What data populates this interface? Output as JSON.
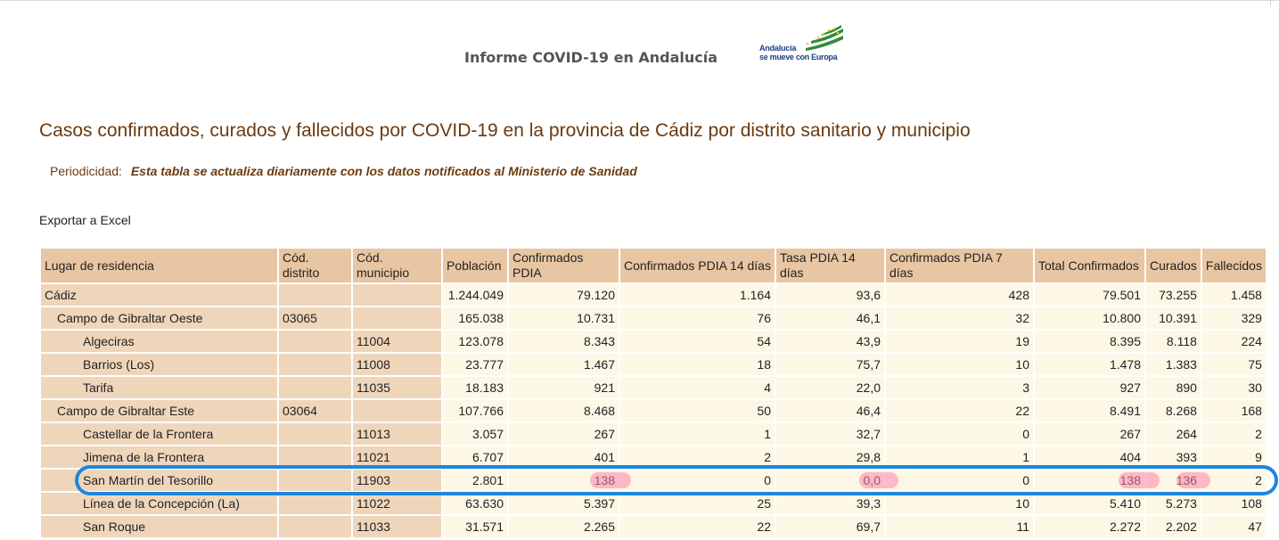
{
  "header": {
    "title": "Informe COVID-19 en Andalucía",
    "logo_line1": "Andalucía",
    "logo_line2": "se mueve con Europa"
  },
  "page_title": "Casos confirmados, curados y fallecidos por COVID-19 en la provincia de Cádiz por distrito sanitario y municipio",
  "periodicidad": {
    "label": "Periodicidad:",
    "value": "Esta tabla se actualiza diariamente con los datos notificados al Ministerio de Sanidad"
  },
  "export_label": "Exportar a Excel",
  "table": {
    "columns": [
      "Lugar de residencia",
      "Cód. distrito",
      "Cód. municipio",
      "Población",
      "Confirmados PDIA",
      "Confirmados PDIA 14 días",
      "Tasa PDIA 14 días",
      "Confirmados PDIA 7 días",
      "Total Confirmados",
      "Curados",
      "Fallecidos"
    ],
    "rows": [
      [
        "Cádiz",
        "",
        "",
        "1.244.049",
        "79.120",
        "1.164",
        "93,6",
        "428",
        "79.501",
        "73.255",
        "1.458"
      ],
      [
        "Campo de Gibraltar Oeste",
        "03065",
        "",
        "165.038",
        "10.731",
        "76",
        "46,1",
        "32",
        "10.800",
        "10.391",
        "329"
      ],
      [
        "Algeciras",
        "",
        "11004",
        "123.078",
        "8.343",
        "54",
        "43,9",
        "19",
        "8.395",
        "8.118",
        "224"
      ],
      [
        "Barrios (Los)",
        "",
        "11008",
        "23.777",
        "1.467",
        "18",
        "75,7",
        "10",
        "1.478",
        "1.383",
        "75"
      ],
      [
        "Tarifa",
        "",
        "11035",
        "18.183",
        "921",
        "4",
        "22,0",
        "3",
        "927",
        "890",
        "30"
      ],
      [
        "Campo de Gibraltar Este",
        "03064",
        "",
        "107.766",
        "8.468",
        "50",
        "46,4",
        "22",
        "8.491",
        "8.268",
        "168"
      ],
      [
        "Castellar de la Frontera",
        "",
        "11013",
        "3.057",
        "267",
        "1",
        "32,7",
        "0",
        "267",
        "264",
        "2"
      ],
      [
        "Jimena de la Frontera",
        "",
        "11021",
        "6.707",
        "401",
        "2",
        "29,8",
        "1",
        "404",
        "393",
        "9"
      ],
      [
        "San Martín del Tesorillo",
        "",
        "11903",
        "2.801",
        "138",
        "0",
        "0,0",
        "0",
        "138",
        "136",
        "2"
      ],
      [
        "Línea de la Concepción (La)",
        "",
        "11022",
        "63.630",
        "5.397",
        "25",
        "39,3",
        "10",
        "5.410",
        "5.273",
        "108"
      ],
      [
        "San Roque",
        "",
        "11033",
        "31.571",
        "2.265",
        "22",
        "69,7",
        "11",
        "2.272",
        "2.202",
        "47"
      ]
    ]
  }
}
